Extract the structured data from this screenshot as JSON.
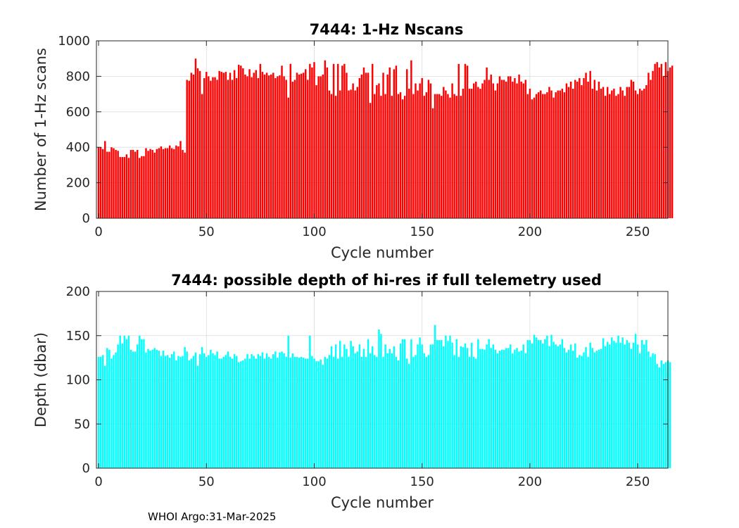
{
  "figure": {
    "footer": "WHOI Argo:31-Mar-2025"
  },
  "chart_data": [
    {
      "type": "bar",
      "title": "7444: 1-Hz Nscans",
      "xlabel": "Cycle number",
      "ylabel": "Number of 1-Hz scans",
      "xlim": [
        -1,
        264
      ],
      "ylim": [
        0,
        1000
      ],
      "xticks": [
        0,
        50,
        100,
        150,
        200,
        250
      ],
      "yticks": [
        0,
        200,
        400,
        600,
        800,
        1000
      ],
      "grid": true,
      "color": "#ff0000",
      "x_start": 0,
      "values": [
        400,
        400,
        390,
        435,
        375,
        375,
        400,
        395,
        385,
        380,
        345,
        345,
        345,
        360,
        340,
        385,
        385,
        375,
        385,
        340,
        350,
        350,
        395,
        380,
        390,
        385,
        370,
        390,
        395,
        405,
        390,
        395,
        395,
        410,
        395,
        390,
        410,
        405,
        435,
        385,
        370,
        780,
        775,
        820,
        810,
        900,
        845,
        830,
        700,
        790,
        825,
        800,
        775,
        795,
        795,
        780,
        830,
        825,
        820,
        825,
        780,
        820,
        780,
        835,
        790,
        865,
        860,
        845,
        810,
        800,
        840,
        795,
        820,
        835,
        790,
        870,
        825,
        810,
        820,
        805,
        810,
        820,
        790,
        800,
        805,
        860,
        800,
        780,
        680,
        870,
        770,
        780,
        820,
        810,
        815,
        820,
        840,
        780,
        870,
        850,
        880,
        750,
        800,
        800,
        810,
        890,
        850,
        720,
        700,
        870,
        690,
        870,
        720,
        860,
        870,
        820,
        720,
        725,
        760,
        720,
        740,
        790,
        810,
        850,
        820,
        820,
        650,
        870,
        700,
        750,
        760,
        690,
        820,
        700,
        810,
        850,
        690,
        840,
        860,
        700,
        710,
        670,
        690,
        840,
        730,
        890,
        700,
        760,
        720,
        760,
        790,
        690,
        710,
        780,
        760,
        620,
        700,
        700,
        700,
        690,
        740,
        720,
        700,
        680,
        760,
        700,
        690,
        870,
        690,
        730,
        870,
        860,
        730,
        730,
        760,
        770,
        740,
        730,
        760,
        780,
        850,
        780,
        810,
        760,
        720,
        760,
        800,
        780,
        780,
        770,
        800,
        800,
        770,
        790,
        760,
        810,
        770,
        760,
        780,
        700,
        730,
        670,
        680,
        700,
        710,
        720,
        700,
        700,
        710,
        740,
        720,
        680,
        710,
        720,
        720,
        730,
        710,
        760,
        740,
        770,
        730,
        780,
        770,
        790,
        750,
        790,
        820,
        770,
        830,
        730,
        780,
        720,
        770,
        730,
        740,
        690,
        740,
        700,
        720,
        730,
        690,
        700,
        740,
        720,
        690,
        740,
        740,
        780,
        770,
        720,
        700,
        730,
        720,
        730,
        750,
        820,
        780,
        830,
        870,
        880,
        850,
        870,
        800,
        880,
        830,
        850,
        860
      ]
    },
    {
      "type": "bar",
      "title": "7444: possible depth of hi-res if full telemetry used",
      "xlabel": "Cycle number",
      "ylabel": "Depth (dbar)",
      "xlim": [
        -1,
        264
      ],
      "ylim": [
        0,
        200
      ],
      "xticks": [
        0,
        50,
        100,
        150,
        200,
        250
      ],
      "yticks": [
        0,
        50,
        100,
        150,
        200
      ],
      "grid": true,
      "color": "#00ffff",
      "x_start": 0,
      "values": [
        126,
        126,
        128,
        116,
        136,
        134,
        124,
        128,
        131,
        140,
        150,
        141,
        150,
        146,
        150,
        134,
        132,
        132,
        140,
        150,
        146,
        146,
        131,
        135,
        133,
        134,
        136,
        134,
        133,
        127,
        133,
        127,
        128,
        125,
        129,
        132,
        122,
        127,
        126,
        127,
        137,
        132,
        122,
        124,
        127,
        131,
        116,
        129,
        137,
        130,
        126,
        128,
        134,
        130,
        128,
        132,
        124,
        124,
        126,
        128,
        132,
        126,
        124,
        129,
        127,
        120,
        121,
        122,
        124,
        129,
        124,
        129,
        127,
        124,
        129,
        127,
        131,
        124,
        130,
        126,
        124,
        129,
        132,
        125,
        131,
        132,
        130,
        126,
        150,
        125,
        130,
        126,
        126,
        125,
        126,
        125,
        124,
        124,
        150,
        127,
        124,
        121,
        121,
        123,
        117,
        126,
        124,
        128,
        138,
        126,
        140,
        124,
        144,
        126,
        140,
        135,
        126,
        144,
        138,
        130,
        132,
        140,
        126,
        135,
        126,
        146,
        130,
        138,
        128,
        126,
        157,
        152,
        126,
        140,
        130,
        135,
        130,
        138,
        126,
        122,
        141,
        146,
        146,
        124,
        118,
        146,
        126,
        128,
        140,
        148,
        140,
        130,
        126,
        128,
        140,
        140,
        162,
        145,
        145,
        145,
        138,
        150,
        144,
        150,
        142,
        128,
        146,
        126,
        138,
        137,
        141,
        136,
        126,
        142,
        126,
        124,
        146,
        135,
        135,
        134,
        140,
        146,
        136,
        140,
        134,
        130,
        133,
        134,
        134,
        136,
        136,
        140,
        130,
        134,
        136,
        132,
        133,
        140,
        130,
        145,
        145,
        141,
        151,
        148,
        145,
        145,
        141,
        146,
        150,
        138,
        151,
        143,
        140,
        138,
        140,
        146,
        136,
        131,
        134,
        140,
        133,
        141,
        125,
        128,
        127,
        131,
        137,
        126,
        142,
        136,
        131,
        133,
        134,
        135,
        147,
        138,
        143,
        140,
        148,
        144,
        142,
        150,
        142,
        148,
        140,
        145,
        142,
        135,
        142,
        152,
        140,
        130,
        145,
        140,
        145,
        132,
        126,
        130,
        129,
        118,
        114,
        122,
        118,
        120,
        122,
        120
      ]
    }
  ]
}
